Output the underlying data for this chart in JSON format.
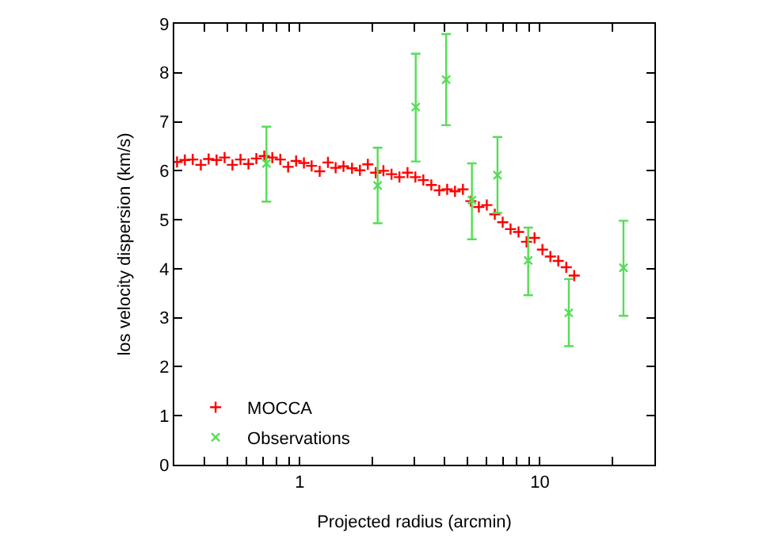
{
  "chart_data": {
    "type": "scatter",
    "xlabel": "Projected radius (arcmin)",
    "ylabel": "los velocity dispersion (km/s)",
    "log": "x",
    "xlim": [
      0.3,
      30
    ],
    "ylim": [
      0,
      9
    ],
    "legend": "bottom left",
    "xticks": [
      {
        "value": 0.4,
        "label": null
      },
      {
        "value": 0.5,
        "label": null
      },
      {
        "value": 0.6,
        "label": null
      },
      {
        "value": 0.7,
        "label": null
      },
      {
        "value": 0.8,
        "label": null
      },
      {
        "value": 0.9,
        "label": null
      },
      1,
      {
        "value": 2,
        "label": null
      },
      {
        "value": 3,
        "label": null
      },
      {
        "value": 4,
        "label": null
      },
      {
        "value": 5,
        "label": null
      },
      {
        "value": 6,
        "label": null
      },
      {
        "value": 7,
        "label": null
      },
      {
        "value": 8,
        "label": null
      },
      {
        "value": 9,
        "label": null
      },
      10,
      {
        "value": 20,
        "label": null
      }
    ],
    "yticks": [
      0,
      1,
      2,
      3,
      4,
      5,
      6,
      7,
      8,
      9
    ],
    "series": [
      {
        "name": "MOCCA",
        "color": "#ff0000",
        "marker": "cross",
        "x": [
          0.308,
          0.332,
          0.358,
          0.387,
          0.417,
          0.45,
          0.486,
          0.524,
          0.566,
          0.611,
          0.659,
          0.711,
          0.768,
          0.829,
          0.894,
          0.965,
          1.04,
          1.12,
          1.21,
          1.31,
          1.41,
          1.52,
          1.65,
          1.78,
          1.92,
          2.07,
          2.23,
          2.41,
          2.6,
          2.81,
          3.03,
          3.27,
          3.53,
          3.81,
          4.11,
          4.43,
          4.78,
          5.16,
          5.57,
          6.01,
          6.49,
          7.0,
          7.55,
          8.15,
          8.8,
          9.5,
          10.25,
          11.06,
          11.93,
          12.88,
          13.9
        ],
        "values": [
          6.18,
          6.22,
          6.23,
          6.12,
          6.24,
          6.22,
          6.27,
          6.12,
          6.23,
          6.14,
          6.25,
          6.3,
          6.27,
          6.23,
          6.08,
          6.2,
          6.16,
          6.1,
          5.99,
          6.17,
          6.06,
          6.09,
          6.05,
          6.01,
          6.13,
          5.96,
          6.0,
          5.93,
          5.87,
          5.96,
          5.87,
          5.81,
          5.71,
          5.6,
          5.62,
          5.58,
          5.62,
          5.38,
          5.26,
          5.3,
          5.11,
          4.95,
          4.81,
          4.75,
          4.55,
          4.63,
          4.39,
          4.25,
          4.16,
          4.03,
          3.86
        ]
      },
      {
        "name": "Observations",
        "color": "#55dd55",
        "marker": "x",
        "x": [
          0.726,
          2.11,
          3.04,
          4.07,
          5.21,
          6.66,
          8.94,
          13.2,
          22.3
        ],
        "values": [
          6.15,
          5.7,
          7.3,
          7.86,
          5.4,
          5.91,
          4.17,
          3.1,
          4.02
        ],
        "errors": [
          [
            5.37,
            6.9
          ],
          [
            4.93,
            6.47
          ],
          [
            6.19,
            8.39
          ],
          [
            6.93,
            8.79
          ],
          [
            4.6,
            6.15
          ],
          [
            5.14,
            6.69
          ],
          [
            3.46,
            4.84
          ],
          [
            2.42,
            3.79
          ],
          [
            3.04,
            4.98
          ]
        ]
      }
    ]
  }
}
